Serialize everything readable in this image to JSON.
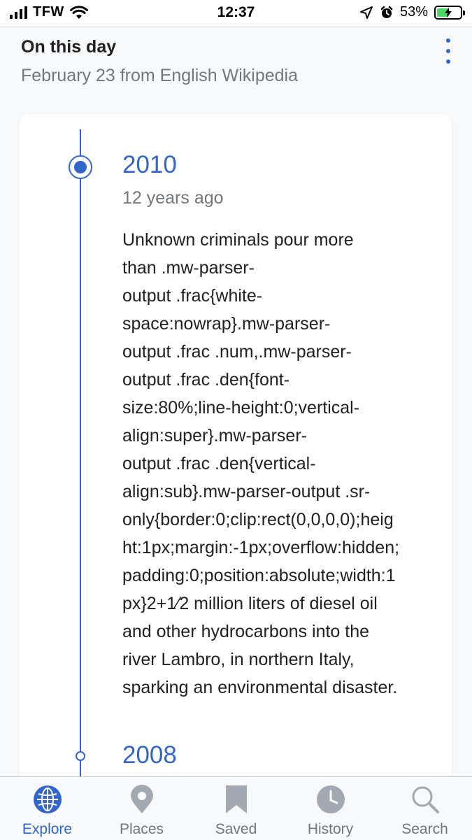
{
  "status_bar": {
    "carrier": "TFW",
    "time": "12:37",
    "battery_percent": "53%",
    "battery_level": 0.53,
    "icons": [
      "signal-icon",
      "wifi-icon",
      "location-icon",
      "alarm-icon",
      "battery-charging-icon"
    ]
  },
  "header": {
    "title": "On this day",
    "subtitle": "February 23 from English Wikipedia",
    "more_icon": "more-vertical-icon"
  },
  "timeline": {
    "events": [
      {
        "year": "2010",
        "ago": "12 years ago",
        "text": "Unknown criminals pour more\nthan .mw-parser-\noutput .frac{white-\nspace:nowrap}.mw-parser-\noutput .frac .num,.mw-parser-\noutput .frac .den{font-\nsize:80%;line-height:0;vertical-\nalign:super}.mw-parser-\noutput .frac .den{vertical-\nalign:sub}.mw-parser-output .sr-\nonly{border:0;clip:rect(0,0,0,0);heig\nht:1px;margin:-1px;overflow:hidden;\npadding:0;position:absolute;width:1\npx}2+1⁄2 million liters of diesel oil\nand other hydrocarbons into the\nriver Lambro, in northern Italy,\nsparking an environmental disaster."
      },
      {
        "year": "2008"
      }
    ]
  },
  "tab_bar": {
    "tabs": [
      {
        "label": "Explore",
        "icon": "globe-icon",
        "active": true
      },
      {
        "label": "Places",
        "icon": "map-pin-icon",
        "active": false
      },
      {
        "label": "Saved",
        "icon": "bookmark-icon",
        "active": false
      },
      {
        "label": "History",
        "icon": "clock-icon",
        "active": false
      },
      {
        "label": "Search",
        "icon": "search-icon",
        "active": false
      }
    ]
  },
  "colors": {
    "accent": "#3366cc",
    "muted_text": "#72777d",
    "inactive_icon": "#a2a9b1",
    "background": "#f8f9fa",
    "card": "#ffffff",
    "battery_green": "#4cd964"
  }
}
